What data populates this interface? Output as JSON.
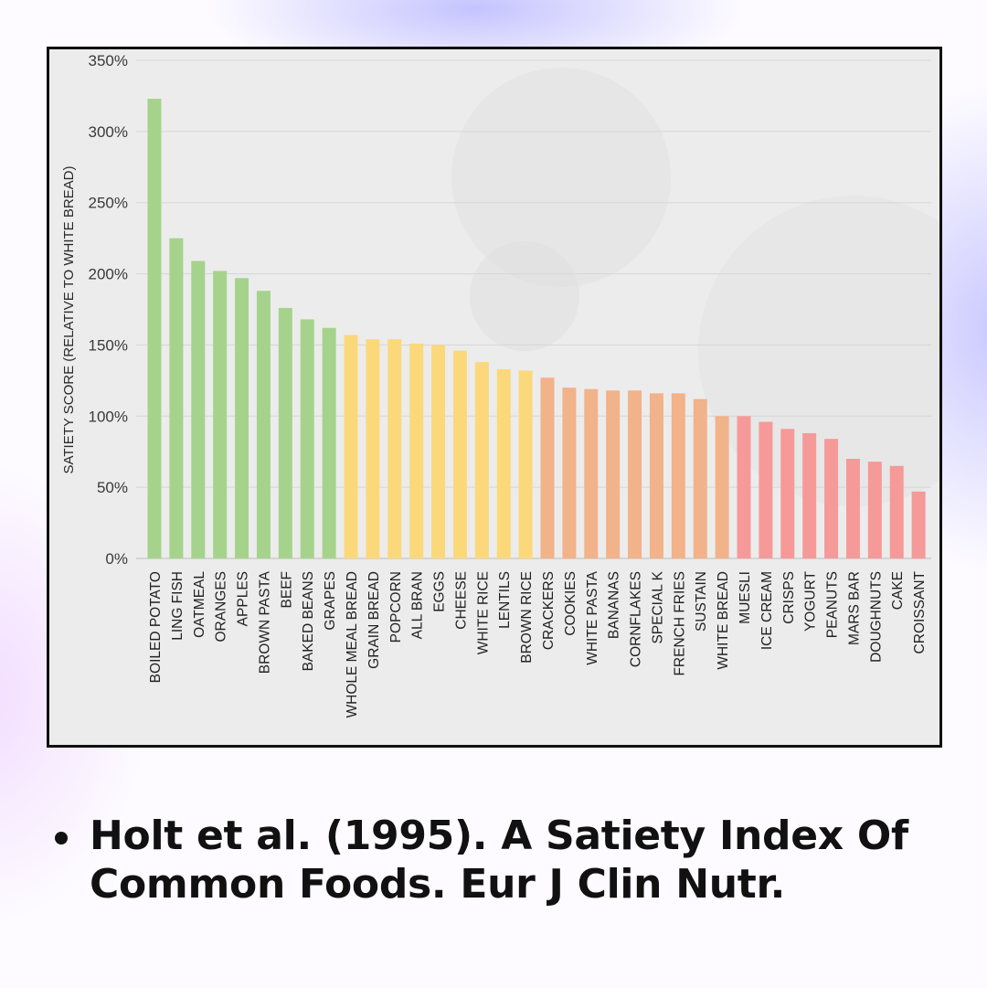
{
  "chart_data": {
    "type": "bar",
    "title": "",
    "xlabel": "",
    "ylabel": "SATIETY SCORE (RELATIVE TO WHITE BREAD)",
    "ylim": [
      0,
      350
    ],
    "yticks": [
      0,
      50,
      100,
      150,
      200,
      250,
      300,
      350
    ],
    "ytick_labels": [
      "0%",
      "50%",
      "100%",
      "150%",
      "200%",
      "250%",
      "300%",
      "350%"
    ],
    "grid": true,
    "legend": "none",
    "categories": [
      "BOILED POTATO",
      "LING FISH",
      "OATMEAL",
      "ORANGES",
      "APPLES",
      "BROWN PASTA",
      "BEEF",
      "BAKED BEANS",
      "GRAPES",
      "WHOLE MEAL BREAD",
      "GRAIN BREAD",
      "POPCORN",
      "ALL BRAN",
      "EGGS",
      "CHEESE",
      "WHITE RICE",
      "LENTILS",
      "BROWN RICE",
      "CRACKERS",
      "COOKIES",
      "WHITE PASTA",
      "BANANAS",
      "CORNFLAKES",
      "SPECIAL K",
      "FRENCH FRIES",
      "SUSTAIN",
      "WHITE BREAD",
      "MUESLI",
      "ICE CREAM",
      "CRISPS",
      "YOGURT",
      "PEANUTS",
      "MARS BAR",
      "DOUGHNUTS",
      "CAKE",
      "CROISSANT"
    ],
    "values": [
      323,
      225,
      209,
      202,
      197,
      188,
      176,
      168,
      162,
      157,
      154,
      154,
      151,
      150,
      146,
      138,
      133,
      132,
      127,
      120,
      119,
      118,
      118,
      116,
      116,
      112,
      100,
      100,
      96,
      91,
      88,
      84,
      70,
      68,
      65,
      47
    ],
    "colors": [
      "#a6d38c",
      "#a6d38c",
      "#a6d38c",
      "#a6d38c",
      "#a6d38c",
      "#a6d38c",
      "#a6d38c",
      "#a6d38c",
      "#a6d38c",
      "#fbd97a",
      "#fbd97a",
      "#fbd97a",
      "#fbd97a",
      "#fbd97a",
      "#fbd97a",
      "#fbd97a",
      "#fbd97a",
      "#fbd97a",
      "#f2b28a",
      "#f2b28a",
      "#f2b28a",
      "#f2b28a",
      "#f2b28a",
      "#f2b28a",
      "#f2b28a",
      "#f2b28a",
      "#f2b28a",
      "#f59a98",
      "#f59a98",
      "#f59a98",
      "#f59a98",
      "#f59a98",
      "#f59a98",
      "#f59a98",
      "#f59a98",
      "#f59a98"
    ]
  },
  "citation": {
    "text": "Holt et al. (1995). A Satiety Index Of Common Foods. Eur J Clin Nutr."
  }
}
